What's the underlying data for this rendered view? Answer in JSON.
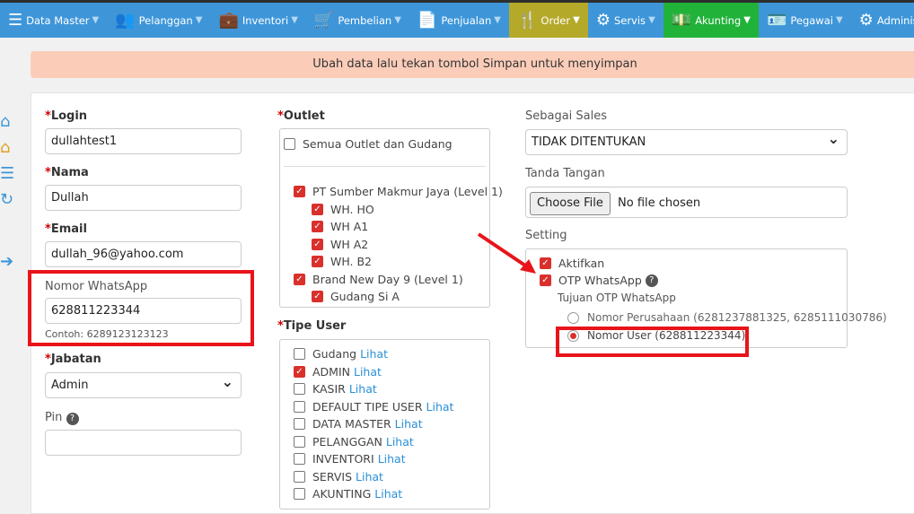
{
  "nav": [
    {
      "label": "Data Master",
      "icon": "list-icon",
      "glyph": "☰"
    },
    {
      "label": "Pelanggan",
      "icon": "users-icon",
      "glyph": "👥"
    },
    {
      "label": "Inventori",
      "icon": "briefcase-icon",
      "glyph": "💼"
    },
    {
      "label": "Pembelian",
      "icon": "cart-icon",
      "glyph": "🛒"
    },
    {
      "label": "Penjualan",
      "icon": "document-icon",
      "glyph": "📄"
    },
    {
      "label": "Order",
      "icon": "cutlery-icon",
      "glyph": "🍴"
    },
    {
      "label": "Servis",
      "icon": "gears-icon",
      "glyph": "⚙"
    },
    {
      "label": "Akunting",
      "icon": "money-icon",
      "glyph": "💵"
    },
    {
      "label": "Pegawai",
      "icon": "id-card-icon",
      "glyph": "🪪"
    },
    {
      "label": "Administrato",
      "icon": "gear-icon",
      "glyph": "⚙"
    }
  ],
  "notice": "Ubah data lalu tekan tombol Simpan untuk menyimpan",
  "form": {
    "login_label": "Login",
    "login": "dullahtest1",
    "nama_label": "Nama",
    "nama": "Dullah",
    "email_label": "Email",
    "email": "dullah_96@yahoo.com",
    "wa_label": "Nomor WhatsApp",
    "wa": "628811223344",
    "wa_hint": "Contoh: 6289123123123",
    "jabatan_label": "Jabatan",
    "jabatan": "Admin",
    "pin_label": "Pin",
    "pin": ""
  },
  "outlet": {
    "label": "Outlet",
    "all": "Semua Outlet dan Gudang",
    "items": [
      {
        "label": "PT Sumber Makmur Jaya (Level 1)",
        "checked": true,
        "indent": 0
      },
      {
        "label": "WH. HO",
        "checked": true,
        "indent": 1
      },
      {
        "label": "WH A1",
        "checked": true,
        "indent": 1
      },
      {
        "label": "WH A2",
        "checked": true,
        "indent": 1
      },
      {
        "label": "WH. B2",
        "checked": true,
        "indent": 1
      },
      {
        "label": "Brand New Day 9 (Level 1)",
        "checked": true,
        "indent": 0
      },
      {
        "label": "Gudang Si A",
        "checked": true,
        "indent": 1
      }
    ]
  },
  "tipe": {
    "label": "Tipe User",
    "link": "Lihat",
    "items": [
      {
        "label": "Gudang",
        "checked": false
      },
      {
        "label": "ADMIN",
        "checked": true
      },
      {
        "label": "KASIR",
        "checked": false
      },
      {
        "label": "DEFAULT TIPE USER",
        "checked": false
      },
      {
        "label": "DATA MASTER",
        "checked": false
      },
      {
        "label": "PELANGGAN",
        "checked": false
      },
      {
        "label": "INVENTORI",
        "checked": false
      },
      {
        "label": "SERVIS",
        "checked": false
      },
      {
        "label": "AKUNTING",
        "checked": false
      }
    ]
  },
  "right": {
    "sales_label": "Sebagai Sales",
    "sales": "TIDAK DITENTUKAN",
    "ttd_label": "Tanda Tangan",
    "choose": "Choose File",
    "no_file": "No file chosen",
    "setting_label": "Setting",
    "aktifkan": "Aktifkan",
    "otp": "OTP WhatsApp",
    "tujuan": "Tujuan OTP WhatsApp",
    "opt_perusahaan": "Nomor Perusahaan (6281237881325, 6285111030786)",
    "opt_user": "Nomor User (628811223344)"
  },
  "colors": {
    "nav": "#3e96d9",
    "order": "#b5a92a",
    "akunting": "#21b23a",
    "highlight": "#e8141a"
  }
}
